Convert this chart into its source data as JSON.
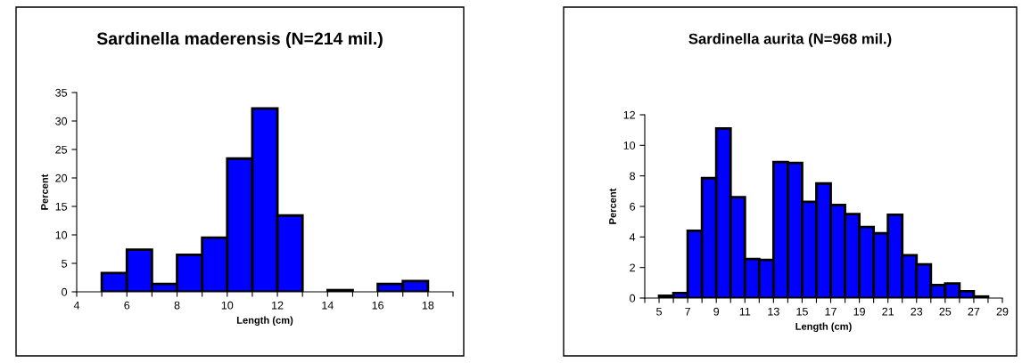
{
  "chart_data": [
    {
      "type": "histogram",
      "title": "Sardinella maderensis (N=214 mil.)",
      "xlabel": "Length (cm)",
      "ylabel": "Percent",
      "color": "#0000ff",
      "bins": [
        5,
        6,
        7,
        8,
        9,
        10,
        11,
        12,
        13,
        14,
        15,
        16,
        17,
        18
      ],
      "values": [
        3.3,
        7.4,
        1.4,
        6.5,
        9.5,
        23.4,
        32.2,
        13.4,
        0,
        0.3,
        0,
        1.4,
        1.9
      ],
      "xlim": [
        4,
        19
      ],
      "xticks": [
        4,
        {
          "value": 5,
          "label": null
        },
        6,
        {
          "value": 7,
          "label": null
        },
        8,
        {
          "value": 9,
          "label": null
        },
        10,
        {
          "value": 11,
          "label": null
        },
        12,
        {
          "value": 13,
          "label": null
        },
        14,
        {
          "value": 15,
          "label": null
        },
        16,
        {
          "value": 17,
          "label": null
        },
        18,
        {
          "value": 19,
          "label": null
        }
      ],
      "ylim": [
        0,
        35
      ],
      "yticks": [
        0,
        5,
        10,
        15,
        20,
        25,
        30,
        35
      ],
      "grid": false
    },
    {
      "type": "histogram",
      "title": "Sardinella aurita (N=968 mil.)",
      "xlabel": "Length (cm)",
      "ylabel": "Percent",
      "color": "#0000ff",
      "bins": [
        5,
        6,
        7,
        8,
        9,
        10,
        11,
        12,
        13,
        14,
        15,
        16,
        17,
        18,
        19,
        20,
        21,
        22,
        23,
        24,
        25,
        26,
        27,
        28
      ],
      "values": [
        0.15,
        0.33,
        4.4,
        7.85,
        11.1,
        6.6,
        2.55,
        2.5,
        8.9,
        8.85,
        6.3,
        7.5,
        6.1,
        5.5,
        4.65,
        4.25,
        5.45,
        2.8,
        2.2,
        0.85,
        0.95,
        0.45,
        0.1
      ],
      "xlim": [
        4,
        29
      ],
      "xticks": [
        {
          "value": 4,
          "label": null
        },
        5,
        {
          "value": 6,
          "label": null
        },
        7,
        {
          "value": 8,
          "label": null
        },
        9,
        {
          "value": 10,
          "label": null
        },
        11,
        {
          "value": 12,
          "label": null
        },
        13,
        {
          "value": 14,
          "label": null
        },
        15,
        {
          "value": 16,
          "label": null
        },
        17,
        {
          "value": 18,
          "label": null
        },
        19,
        {
          "value": 20,
          "label": null
        },
        21,
        {
          "value": 22,
          "label": null
        },
        23,
        {
          "value": 24,
          "label": null
        },
        25,
        {
          "value": 26,
          "label": null
        },
        27,
        {
          "value": 28,
          "label": null
        },
        29
      ],
      "ylim": [
        0,
        12
      ],
      "yticks": [
        0,
        2,
        4,
        6,
        8,
        10,
        12
      ],
      "grid": false
    }
  ]
}
